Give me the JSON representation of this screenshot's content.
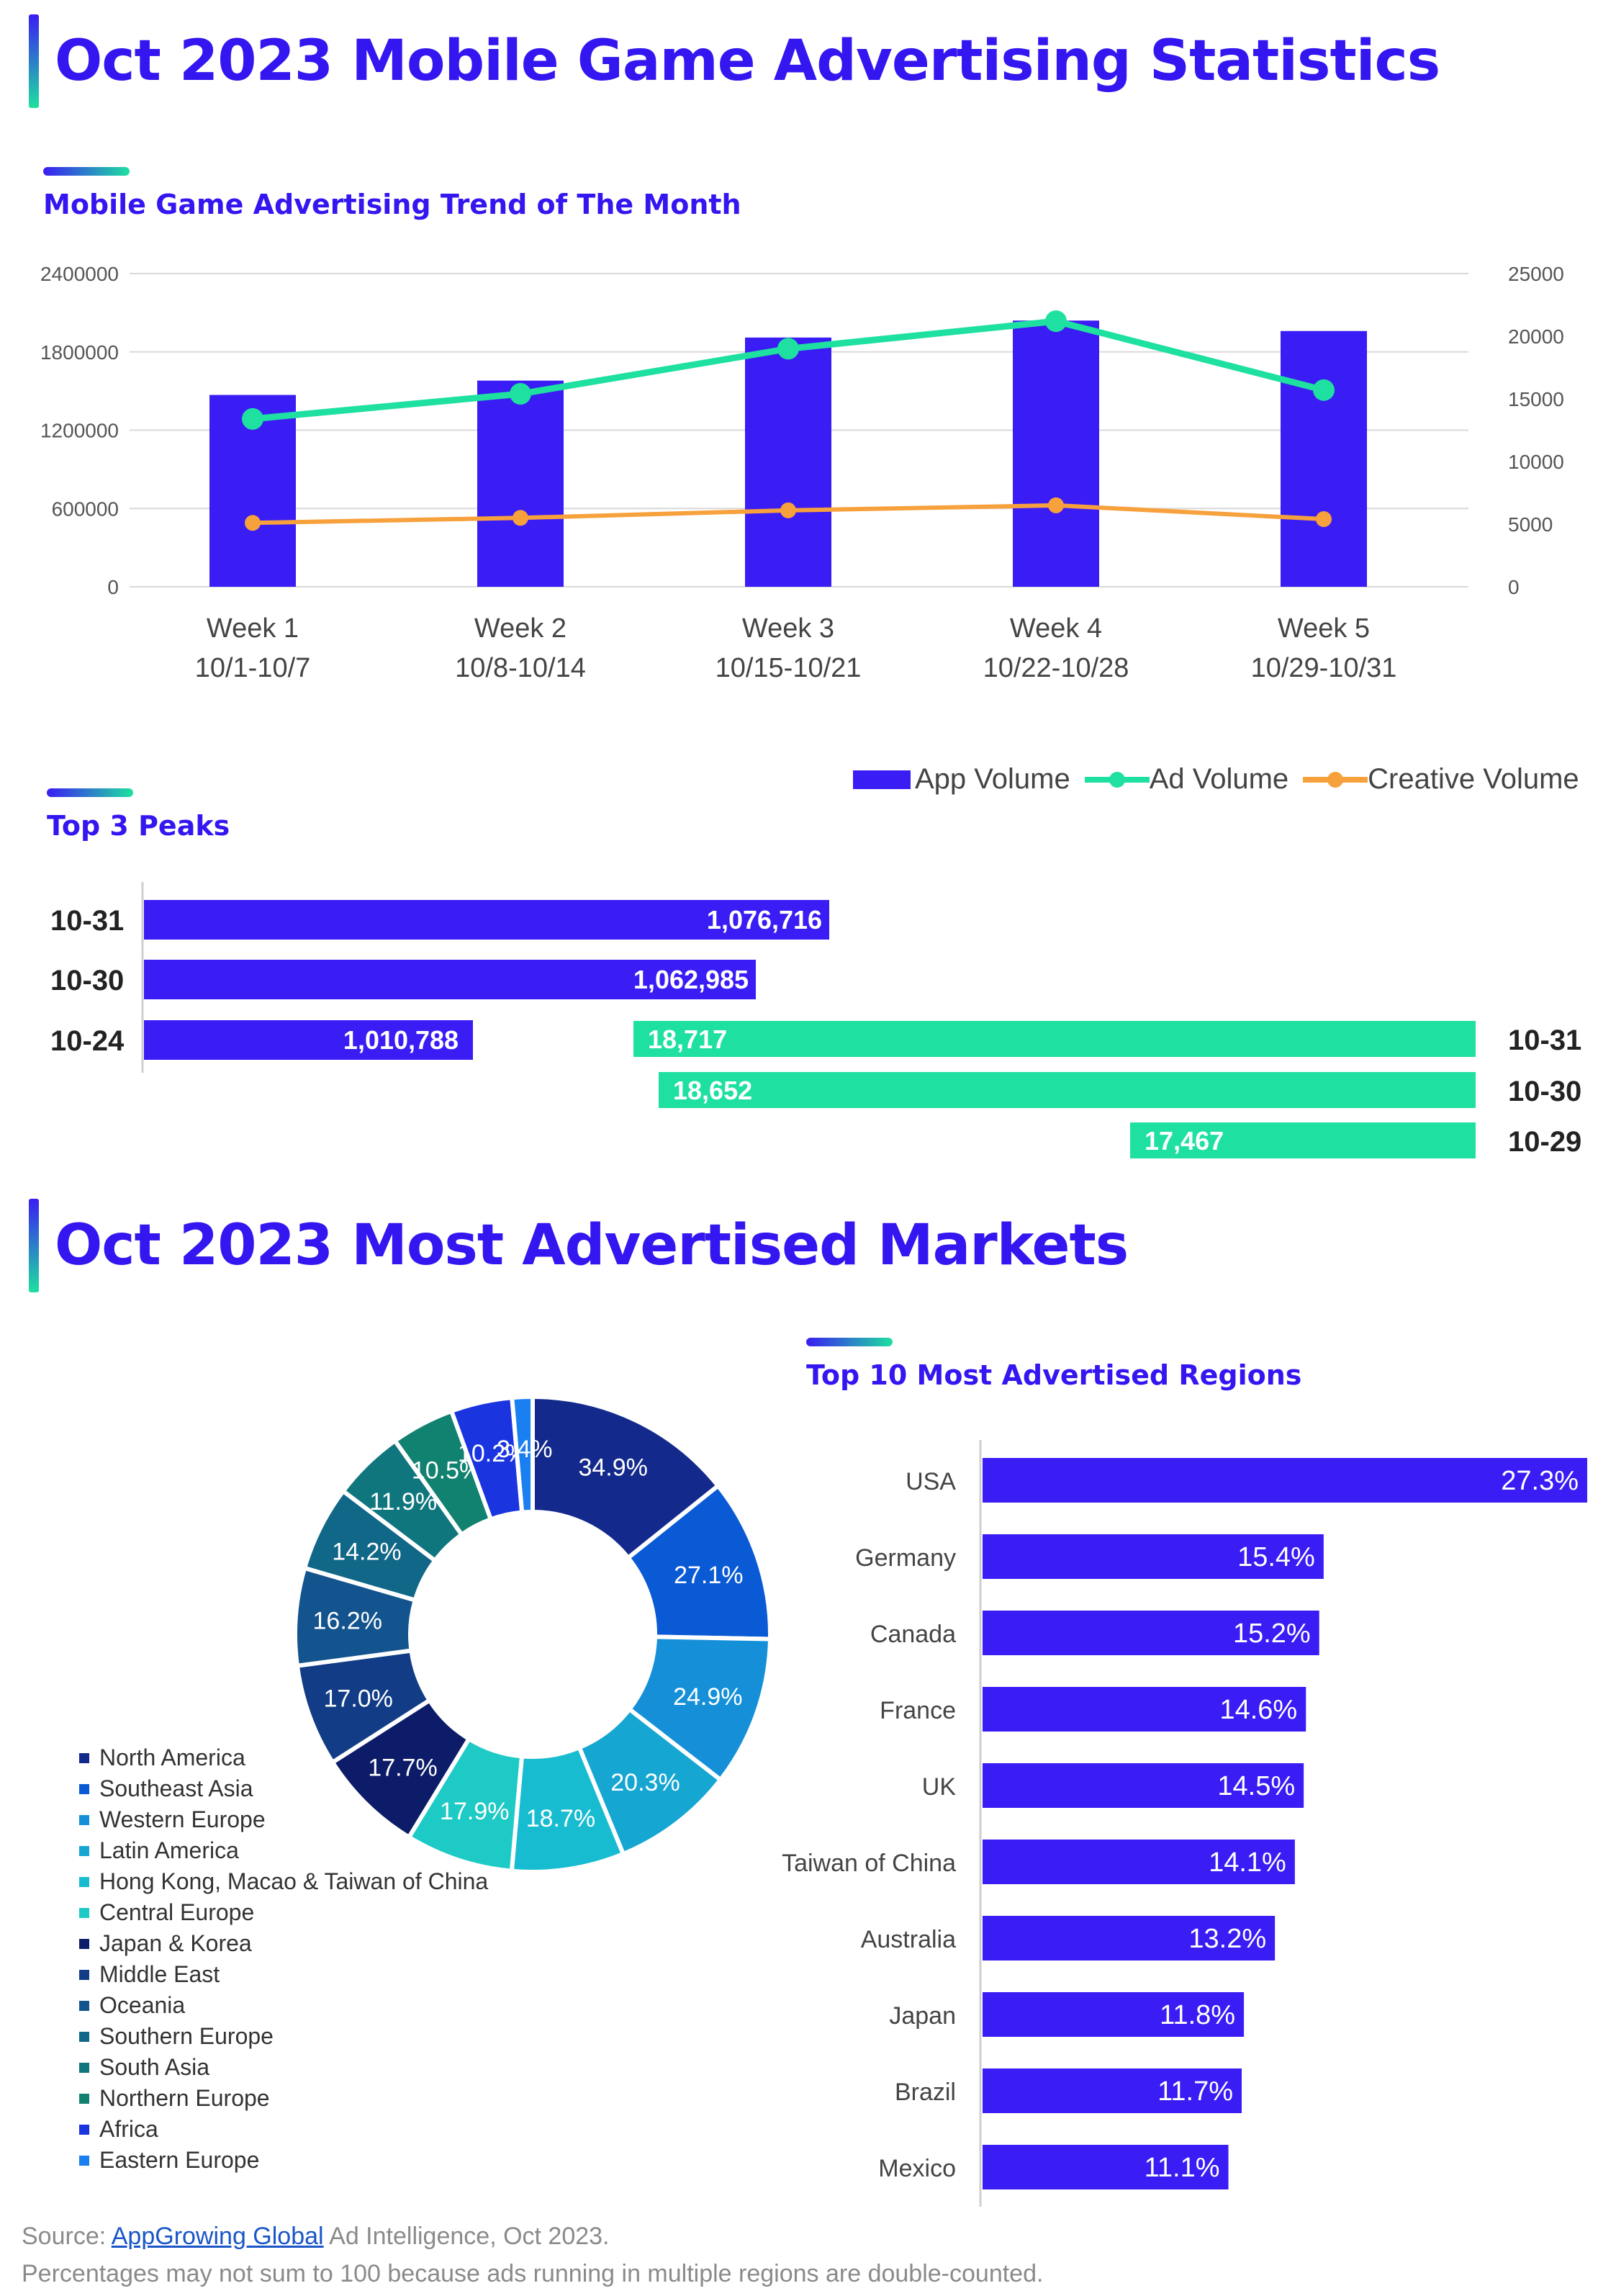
{
  "headings": {
    "stats_title": "Oct 2023 Mobile Game Advertising Statistics",
    "trend_title": "Mobile Game Advertising Trend of The Month",
    "peaks_title": "Top 3 Peaks",
    "markets_title": "Oct 2023 Most Advertised Markets",
    "regions_title": "Top 10 Most Advertised Regions"
  },
  "chart_data": [
    {
      "type": "bar",
      "name": "trend",
      "categories": [
        "Week 1",
        "Week 2",
        "Week 3",
        "Week 4",
        "Week 5"
      ],
      "category_sublabels": [
        "10/1-10/7",
        "10/8-10/14",
        "10/15-10/21",
        "10/22-10/28",
        "10/29-10/31"
      ],
      "series": [
        {
          "name": "App Volume",
          "kind": "bar",
          "axis": "left",
          "color": "#3a1cf5",
          "values": [
            1470000,
            1580000,
            1910000,
            2040000,
            1960000
          ]
        },
        {
          "name": "Ad Volume",
          "kind": "line",
          "axis": "right",
          "color": "#1ee0a0",
          "values": [
            13400,
            15400,
            19000,
            21200,
            15700
          ]
        },
        {
          "name": "Creative Volume",
          "kind": "line",
          "axis": "right",
          "color": "#f7a13d",
          "values": [
            5100,
            5500,
            6100,
            6500,
            5400
          ]
        }
      ],
      "y_left": {
        "ticks": [
          "0",
          "600000",
          "1200000",
          "1800000",
          "2400000"
        ],
        "min": 0,
        "max": 2400000
      },
      "y_right": {
        "ticks": [
          "0",
          "5000",
          "10000",
          "15000",
          "20000",
          "25000"
        ],
        "min": 0,
        "max": 25000
      },
      "grid": true,
      "legend": "bottom-right"
    },
    {
      "type": "bar",
      "name": "top_peaks_app",
      "orientation": "horizontal",
      "categories": [
        "10-31",
        "10-30",
        "10-24"
      ],
      "values": [
        1076716,
        1062985,
        1010788
      ],
      "labels": [
        "1,076,716",
        "1,062,985",
        "1,010,788"
      ],
      "color": "#3a1cf5"
    },
    {
      "type": "bar",
      "name": "top_peaks_ad",
      "orientation": "horizontal",
      "categories": [
        "10-31",
        "10-30",
        "10-29"
      ],
      "values": [
        18717,
        18652,
        17467
      ],
      "labels": [
        "18,717",
        "18,652",
        "17,467"
      ],
      "color": "#1ee0a0"
    },
    {
      "type": "pie",
      "name": "markets",
      "donut": true,
      "categories": [
        "North America",
        "Southeast Asia",
        "Western Europe",
        "Latin America",
        "Hong Kong, Macao & Taiwan of China",
        "Central Europe",
        "Japan & Korea",
        "Middle East",
        "Oceania",
        "Southern Europe",
        "South Asia",
        "Northern Europe",
        "Africa",
        "Eastern Europe"
      ],
      "values": [
        34.9,
        27.1,
        24.9,
        20.3,
        18.7,
        17.9,
        17.7,
        17.0,
        16.2,
        14.2,
        11.9,
        10.5,
        10.2,
        3.4
      ],
      "labels": [
        "34.9%",
        "27.1%",
        "24.9%",
        "20.3%",
        "18.7%",
        "17.9%",
        "17.7%",
        "17.0%",
        "16.2%",
        "14.2%",
        "11.9%",
        "10.5%",
        "10.2%",
        "3.4%"
      ],
      "colors": [
        "#132a8c",
        "#0a5ad6",
        "#1590d8",
        "#16a6d2",
        "#18bcd0",
        "#1ecac6",
        "#0c1c68",
        "#123d86",
        "#13548e",
        "#116787",
        "#10767d",
        "#118170",
        "#1a34e0",
        "#1a7ff0"
      ],
      "legend": "left"
    },
    {
      "type": "bar",
      "name": "regions",
      "orientation": "horizontal",
      "categories": [
        "USA",
        "Germany",
        "Canada",
        "France",
        "UK",
        "Taiwan of China",
        "Australia",
        "Japan",
        "Brazil",
        "Mexico"
      ],
      "values": [
        27.3,
        15.4,
        15.2,
        14.6,
        14.5,
        14.1,
        13.2,
        11.8,
        11.7,
        11.1
      ],
      "labels": [
        "27.3%",
        "15.4%",
        "15.2%",
        "14.6%",
        "14.5%",
        "14.1%",
        "13.2%",
        "11.8%",
        "11.7%",
        "11.1%"
      ],
      "color": "#3a1cf5"
    }
  ],
  "footer": {
    "source_prefix": "Source: ",
    "source_link": "AppGrowing Global",
    "source_suffix": " Ad Intelligence, Oct 2023.",
    "note": "Percentages may not sum to 100 because ads running in multiple regions are double-counted."
  }
}
